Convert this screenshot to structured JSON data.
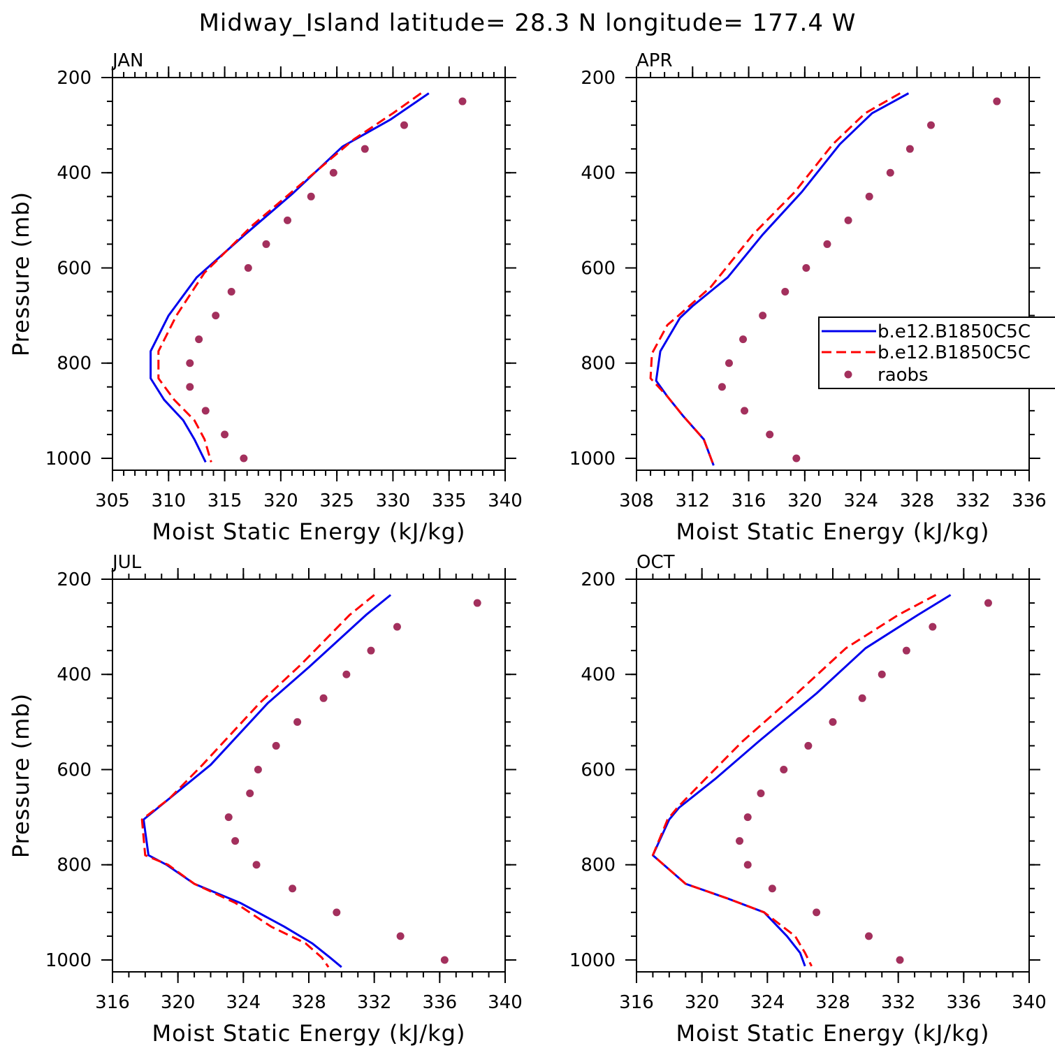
{
  "title": "Midway_Island  latitude= 28.3 N longitude= 177.4 W",
  "colors": {
    "model1": "#0000ee",
    "model2": "#ff0000",
    "raobs": "#a3305d"
  },
  "legend": {
    "entries": [
      "b.e12.B1850C5C",
      "b.e12.B1850C5C",
      "raobs"
    ],
    "panel": "APR"
  },
  "chart_data": [
    {
      "type": "line",
      "panel_title": "JAN",
      "xlabel": "Moist Static Energy (kJ/kg)",
      "ylabel": "Pressure (mb)",
      "xlim": [
        305,
        340
      ],
      "xticks": [
        305,
        310,
        315,
        320,
        325,
        330,
        335,
        340
      ],
      "xminor": 1,
      "ylim": [
        200,
        1025
      ],
      "yticks": [
        200,
        400,
        600,
        800,
        1000
      ],
      "y_inverted": true,
      "series": [
        {
          "name": "b.e12.B1850C5C",
          "style": "solid",
          "x": [
            333.2,
            329.8,
            325.5,
            321.0,
            316.8,
            312.5,
            310.0,
            308.4,
            308.4,
            309.6,
            311.3,
            312.3,
            313.3
          ],
          "y": [
            233,
            288,
            345,
            445,
            530,
            620,
            700,
            775,
            832,
            877,
            920,
            960,
            1008
          ]
        },
        {
          "name": "b.e12.B1850C5C",
          "style": "dashed",
          "x": [
            332.5,
            330.0,
            326.5,
            322.0,
            317.5,
            313.2,
            310.7,
            309.1,
            309.1,
            310.5,
            312.3,
            313.2,
            313.8
          ],
          "y": [
            233,
            275,
            330,
            420,
            510,
            610,
            700,
            775,
            832,
            877,
            920,
            960,
            1008
          ]
        },
        {
          "name": "raobs",
          "style": "markers",
          "x": [
            336.2,
            331.0,
            327.5,
            324.7,
            322.7,
            320.6,
            318.7,
            317.1,
            315.6,
            314.2,
            312.7,
            311.9,
            311.9,
            313.3,
            315.0,
            316.7
          ],
          "y": [
            250,
            300,
            350,
            400,
            450,
            500,
            550,
            600,
            650,
            700,
            750,
            800,
            850,
            900,
            950,
            1000
          ]
        }
      ]
    },
    {
      "type": "line",
      "panel_title": "APR",
      "xlabel": "Moist Static Energy (kJ/kg)",
      "ylabel": "",
      "xlim": [
        308,
        336
      ],
      "xticks": [
        308,
        312,
        316,
        320,
        324,
        328,
        332,
        336
      ],
      "xminor": 1,
      "ylim": [
        200,
        1025
      ],
      "yticks": [
        200,
        400,
        600,
        800,
        1000
      ],
      "y_inverted": true,
      "series": [
        {
          "name": "b.e12.B1850C5C",
          "style": "solid",
          "x": [
            327.4,
            324.8,
            322.5,
            319.8,
            317.0,
            314.5,
            312.0,
            311.1,
            309.7,
            309.4,
            310.2,
            311.3,
            312.8,
            313.5
          ],
          "y": [
            233,
            275,
            340,
            440,
            530,
            620,
            680,
            705,
            775,
            837,
            870,
            910,
            960,
            1015
          ]
        },
        {
          "name": "b.e12.B1850C5C",
          "style": "dashed",
          "x": [
            326.8,
            324.3,
            322.0,
            319.3,
            316.3,
            313.3,
            311.0,
            310.2,
            309.1,
            309.0,
            310.2,
            311.3,
            312.8,
            313.5
          ],
          "y": [
            233,
            275,
            340,
            440,
            530,
            640,
            700,
            720,
            780,
            832,
            870,
            910,
            960,
            1015
          ]
        },
        {
          "name": "raobs",
          "style": "markers",
          "x": [
            333.7,
            329.0,
            327.5,
            326.1,
            324.6,
            323.1,
            321.6,
            320.1,
            318.6,
            317.0,
            315.6,
            314.6,
            314.1,
            315.7,
            317.5,
            319.4
          ],
          "y": [
            250,
            300,
            350,
            400,
            450,
            500,
            550,
            600,
            650,
            700,
            750,
            800,
            850,
            900,
            950,
            1000
          ]
        }
      ]
    },
    {
      "type": "line",
      "panel_title": "JUL",
      "xlabel": "Moist Static Energy (kJ/kg)",
      "ylabel": "Pressure (mb)",
      "xlim": [
        316,
        340
      ],
      "xticks": [
        316,
        320,
        324,
        328,
        332,
        336,
        340
      ],
      "xminor": 1,
      "ylim": [
        200,
        1025
      ],
      "yticks": [
        200,
        400,
        600,
        800,
        1000
      ],
      "y_inverted": true,
      "series": [
        {
          "name": "b.e12.B1850C5C",
          "style": "solid",
          "x": [
            333.0,
            331.5,
            328.0,
            325.5,
            322.0,
            319.5,
            317.9,
            318.2,
            319.3,
            321.0,
            323.8,
            326.5,
            328.2,
            329.3,
            330.0
          ],
          "y": [
            233,
            275,
            385,
            460,
            590,
            660,
            705,
            780,
            800,
            840,
            880,
            930,
            965,
            995,
            1015
          ]
        },
        {
          "name": "b.e12.B1850C5C",
          "style": "dashed",
          "x": [
            332.0,
            330.5,
            327.5,
            325.0,
            321.5,
            319.5,
            317.8,
            318.0,
            319.4,
            321.0,
            323.5,
            325.7,
            327.8,
            328.8,
            329.2
          ],
          "y": [
            233,
            275,
            380,
            460,
            590,
            660,
            705,
            780,
            800,
            840,
            880,
            930,
            965,
            995,
            1015
          ]
        },
        {
          "name": "raobs",
          "style": "markers",
          "x": [
            338.3,
            333.4,
            331.8,
            330.3,
            328.9,
            327.3,
            326.0,
            324.9,
            324.4,
            323.1,
            323.5,
            324.8,
            327.0,
            329.7,
            333.6,
            336.3
          ],
          "y": [
            250,
            300,
            350,
            400,
            450,
            500,
            550,
            600,
            650,
            700,
            750,
            800,
            850,
            900,
            950,
            1000
          ]
        }
      ]
    },
    {
      "type": "line",
      "panel_title": "OCT",
      "xlabel": "Moist Static Energy (kJ/kg)",
      "ylabel": "",
      "xlim": [
        316,
        340
      ],
      "xticks": [
        316,
        320,
        324,
        328,
        332,
        336,
        340
      ],
      "xminor": 1,
      "ylim": [
        200,
        1025
      ],
      "yticks": [
        200,
        400,
        600,
        800,
        1000
      ],
      "y_inverted": true,
      "series": [
        {
          "name": "b.e12.B1850C5C",
          "style": "solid",
          "x": [
            335.2,
            333.2,
            330.0,
            327.0,
            323.5,
            320.8,
            318.6,
            318.0,
            317.0,
            318.0,
            319.0,
            321.5,
            323.8,
            325.2,
            326.0,
            326.3
          ],
          "y": [
            233,
            275,
            345,
            440,
            540,
            620,
            680,
            705,
            780,
            810,
            840,
            870,
            900,
            950,
            985,
            1013
          ]
        },
        {
          "name": "b.e12.B1850C5C",
          "style": "dashed",
          "x": [
            334.3,
            332.0,
            328.8,
            325.8,
            322.5,
            320.2,
            318.5,
            317.9,
            317.0,
            318.0,
            319.0,
            321.5,
            323.8,
            325.7,
            326.3,
            326.7
          ],
          "y": [
            233,
            275,
            345,
            440,
            540,
            620,
            680,
            705,
            780,
            810,
            840,
            870,
            900,
            950,
            985,
            1013
          ]
        },
        {
          "name": "raobs",
          "style": "markers",
          "x": [
            337.5,
            334.1,
            332.5,
            331.0,
            329.8,
            328.0,
            326.5,
            325.0,
            323.6,
            322.8,
            322.3,
            322.8,
            324.3,
            327.0,
            330.2,
            332.1
          ],
          "y": [
            250,
            300,
            350,
            400,
            450,
            500,
            550,
            600,
            650,
            700,
            750,
            800,
            850,
            900,
            950,
            1000
          ]
        }
      ]
    }
  ]
}
